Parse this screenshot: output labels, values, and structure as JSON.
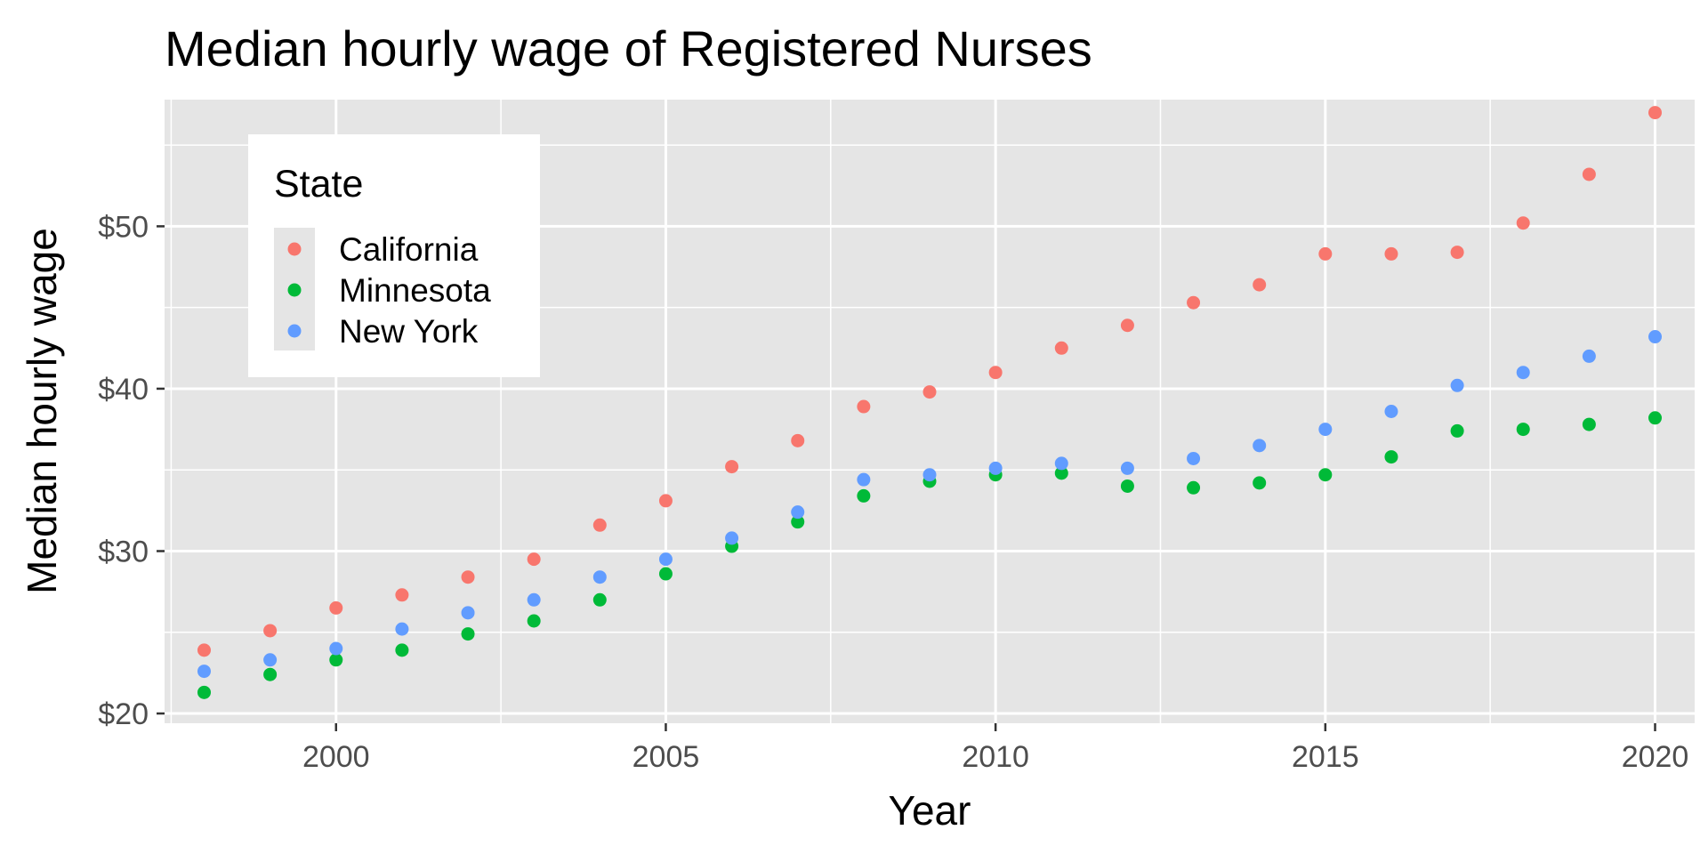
{
  "chart_data": {
    "type": "scatter",
    "title": "Median hourly wage of Registered Nurses",
    "xlabel": "Year",
    "ylabel": "Median hourly wage",
    "xlim": [
      1997.4,
      2020.6
    ],
    "ylim": [
      19.4,
      57.8
    ],
    "x_ticks": [
      2000,
      2005,
      2010,
      2015,
      2020
    ],
    "y_ticks": [
      20,
      30,
      40,
      50
    ],
    "y_tick_labels": [
      "$20",
      "$30",
      "$40",
      "$50"
    ],
    "grid": true,
    "legend": {
      "title": "State",
      "placement": "top-left"
    },
    "x": [
      1998,
      1999,
      2000,
      2001,
      2002,
      2003,
      2004,
      2005,
      2006,
      2007,
      2008,
      2009,
      2010,
      2011,
      2012,
      2013,
      2014,
      2015,
      2016,
      2017,
      2018,
      2019,
      2020
    ],
    "series": [
      {
        "name": "California",
        "color": "#F8766D",
        "values": [
          23.9,
          25.1,
          26.5,
          27.3,
          28.4,
          29.5,
          31.6,
          33.1,
          35.2,
          36.8,
          38.9,
          39.8,
          41.0,
          42.5,
          43.9,
          45.3,
          46.4,
          48.3,
          48.3,
          48.4,
          50.2,
          53.2,
          57.0
        ]
      },
      {
        "name": "Minnesota",
        "color": "#00BA38",
        "values": [
          21.3,
          22.4,
          23.3,
          23.9,
          24.9,
          25.7,
          27.0,
          28.6,
          30.3,
          31.8,
          33.4,
          34.3,
          34.7,
          34.8,
          34.0,
          33.9,
          34.2,
          34.7,
          35.8,
          37.4,
          37.5,
          37.8,
          38.2
        ]
      },
      {
        "name": "New York",
        "color": "#619CFF",
        "values": [
          22.6,
          23.3,
          24.0,
          25.2,
          26.2,
          27.0,
          28.4,
          29.5,
          30.8,
          32.4,
          34.4,
          34.7,
          35.1,
          35.4,
          35.1,
          35.7,
          36.5,
          37.5,
          38.6,
          40.2,
          41.0,
          42.0,
          43.2
        ]
      }
    ]
  }
}
